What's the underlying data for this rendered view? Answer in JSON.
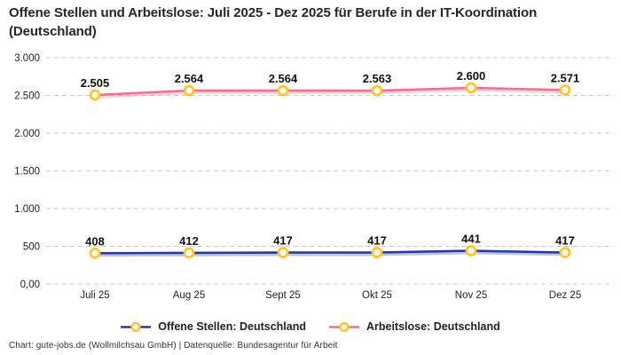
{
  "title": "Offene Stellen und Arbeitslose: Juli 2025 - Dez 2025 für Berufe in der IT-Koordination (Deutschland)",
  "footer": "Chart: gute-jobs.de (Wollmilchsau GmbH) | Datenquelle: Bundesagentur für Arbeit",
  "colors": {
    "background": "#ffffff",
    "title_text": "#262626",
    "axis_text": "#1f1f1f",
    "data_label_text": "#111111",
    "gridline": "#c9c9c9",
    "series_open_positions": "#283A97",
    "series_unemployed": "#F56E8A",
    "marker_ring": "#FFC42E",
    "marker_fill": "#ffffff"
  },
  "chart_data": {
    "type": "line",
    "title": "Offene Stellen und Arbeitslose: Juli 2025 - Dez 2025 für Berufe in der IT-Koordination (Deutschland)",
    "categories": [
      "Juli 25",
      "Aug 25",
      "Sept 25",
      "Okt 25",
      "Nov 25",
      "Dez 25"
    ],
    "series": [
      {
        "name": "Offene Stellen: Deutschland",
        "values": [
          408,
          412,
          417,
          417,
          441,
          417
        ],
        "value_labels": [
          "408",
          "412",
          "417",
          "417",
          "441",
          "417"
        ],
        "color": "#283A97"
      },
      {
        "name": "Arbeitslose: Deutschland",
        "values": [
          2505,
          2564,
          2564,
          2563,
          2600,
          2571
        ],
        "value_labels": [
          "2.505",
          "2.564",
          "2.564",
          "2.563",
          "2.600",
          "2.571"
        ],
        "color": "#F56E8A"
      }
    ],
    "y_ticks": [
      {
        "value": 0,
        "label": "0,00"
      },
      {
        "value": 500,
        "label": "500"
      },
      {
        "value": 1000,
        "label": "1.000"
      },
      {
        "value": 1500,
        "label": "1.500"
      },
      {
        "value": 2000,
        "label": "2.000"
      },
      {
        "value": 2500,
        "label": "2.500"
      },
      {
        "value": 3000,
        "label": "3.000"
      }
    ],
    "ylim": [
      0,
      3000
    ],
    "xlabel": "",
    "ylabel": "",
    "grid": "horizontal-dashed",
    "legend_position": "bottom",
    "marker": {
      "fill": "#ffffff",
      "stroke": "#FFC42E"
    }
  }
}
